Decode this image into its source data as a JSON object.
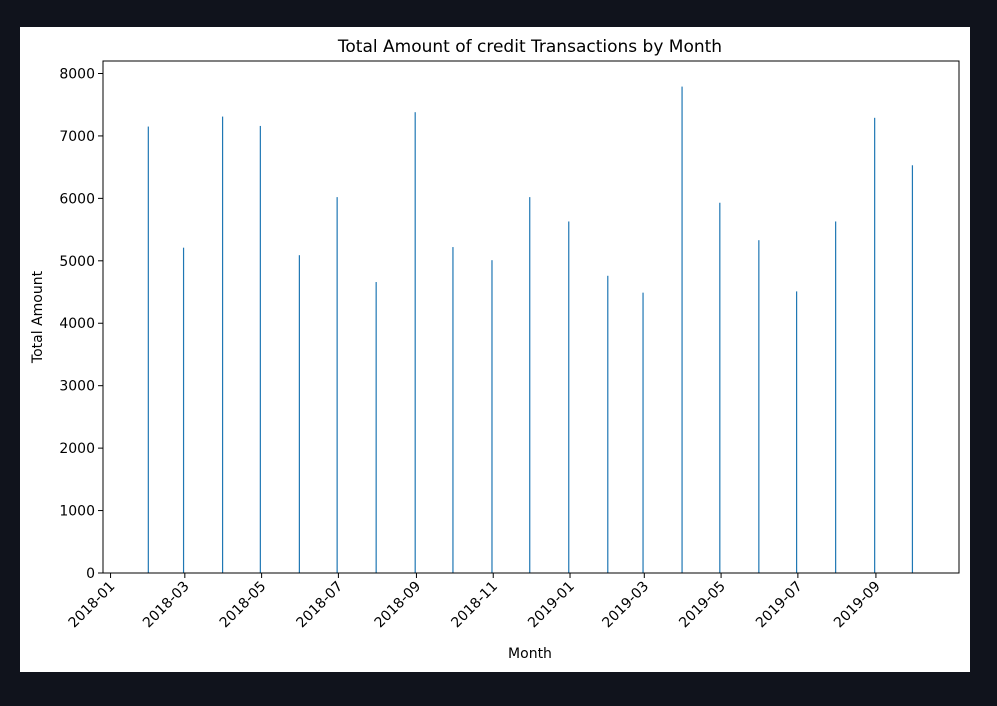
{
  "colors": {
    "page_background": "#10131c",
    "figure_background": "#ffffff",
    "bar_color": "#1f77b4",
    "axis_color": "#000000"
  },
  "chart_data": {
    "type": "bar",
    "title": "Total Amount of credit Transactions by Month",
    "xlabel": "Month",
    "ylabel": "Total Amount",
    "x_axis_type": "date",
    "xlim": [
      "2017-12-26",
      "2019-11-06"
    ],
    "ylim": [
      0,
      8200
    ],
    "yticks": [
      0,
      1000,
      2000,
      3000,
      4000,
      5000,
      6000,
      7000,
      8000
    ],
    "xtick_labels": [
      "2018-01",
      "2018-03",
      "2018-05",
      "2018-07",
      "2018-09",
      "2018-11",
      "2019-01",
      "2019-03",
      "2019-05",
      "2019-07",
      "2019-09"
    ],
    "xtick_dates": [
      "2018-01-01",
      "2018-03-01",
      "2018-05-01",
      "2018-07-01",
      "2018-09-01",
      "2018-11-01",
      "2019-01-01",
      "2019-03-01",
      "2019-05-01",
      "2019-07-01",
      "2019-09-01"
    ],
    "grid": false,
    "legend": "none",
    "dates": [
      "2018-01-31",
      "2018-02-28",
      "2018-03-31",
      "2018-04-30",
      "2018-05-31",
      "2018-06-30",
      "2018-07-31",
      "2018-08-31",
      "2018-09-30",
      "2018-10-31",
      "2018-11-30",
      "2018-12-31",
      "2019-01-31",
      "2019-02-28",
      "2019-03-31",
      "2019-04-30",
      "2019-05-31",
      "2019-06-30",
      "2019-07-31",
      "2019-08-31",
      "2019-09-30"
    ],
    "values": [
      7150,
      5210,
      7310,
      7160,
      5090,
      6020,
      4660,
      7380,
      5220,
      5010,
      6020,
      5630,
      4760,
      4490,
      7790,
      5930,
      5330,
      4510,
      5630,
      7290,
      6530
    ]
  }
}
